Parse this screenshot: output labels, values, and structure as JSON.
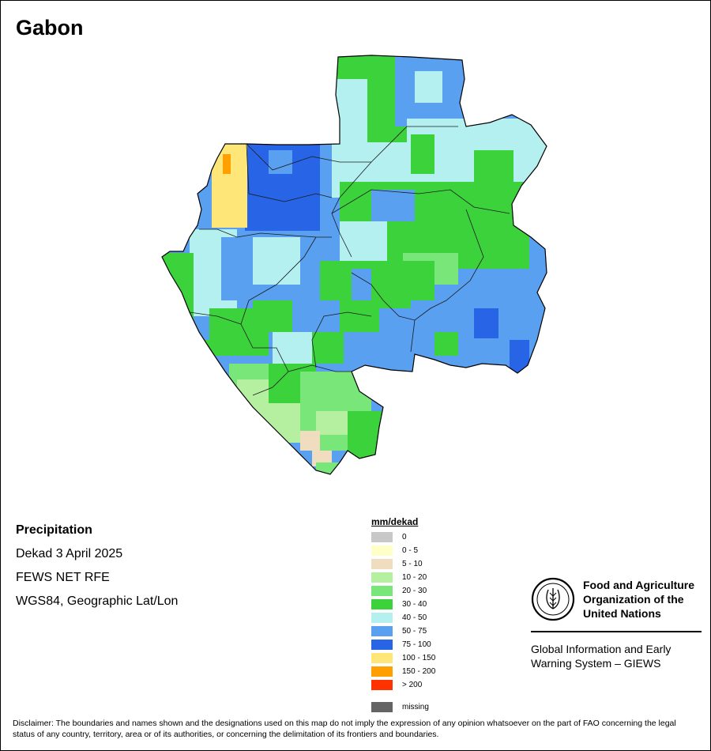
{
  "map": {
    "title": "Gabon",
    "palette": {
      "c0": "#c8c8c8",
      "c0_5": "#ffffc8",
      "c5_10": "#f0dcbe",
      "c10_20": "#b4f0a0",
      "c20_30": "#78e678",
      "c30_40": "#3cd23c",
      "c40_50": "#b4f0f0",
      "c50_75": "#5aa0f0",
      "c75_100": "#2864e6",
      "c100_150": "#ffe678",
      "c150_200": "#ffa000",
      "c200": "#ff3200",
      "missing": "#646464"
    }
  },
  "info": {
    "heading": "Precipitation",
    "period": "Dekad 3 April 2025",
    "source": "FEWS NET RFE",
    "projection": "WGS84, Geographic Lat/Lon"
  },
  "legend": {
    "unit": "mm/dekad",
    "classes": [
      {
        "label": "0",
        "color": "#c8c8c8"
      },
      {
        "label": "0 - 5",
        "color": "#ffffc8"
      },
      {
        "label": "5 - 10",
        "color": "#f0dcbe"
      },
      {
        "label": "10 - 20",
        "color": "#b4f0a0"
      },
      {
        "label": "20 - 30",
        "color": "#78e678"
      },
      {
        "label": "30 - 40",
        "color": "#3cd23c"
      },
      {
        "label": "40 - 50",
        "color": "#b4f0f0"
      },
      {
        "label": "50 - 75",
        "color": "#5aa0f0"
      },
      {
        "label": "75 - 100",
        "color": "#2864e6"
      },
      {
        "label": "100 - 150",
        "color": "#ffe678"
      },
      {
        "label": "150 - 200",
        "color": "#ffa000"
      },
      {
        "label": "> 200",
        "color": "#ff3200"
      }
    ],
    "missing": {
      "label": "missing",
      "color": "#646464"
    }
  },
  "fao": {
    "line1": "Food and Agriculture",
    "line2": "Organization of the",
    "line3": "United Nations",
    "giews1": "Global Information and Early",
    "giews2": "Warning System – GIEWS"
  },
  "disclaimer": "Disclaimer: The boundaries and names shown and the designations used on this map do not imply the expression of any opinion whatsoever on the part of FAO concerning the legal status of any country, territory, area or of its authorities, or concerning the delimitation of its frontiers and boundaries."
}
